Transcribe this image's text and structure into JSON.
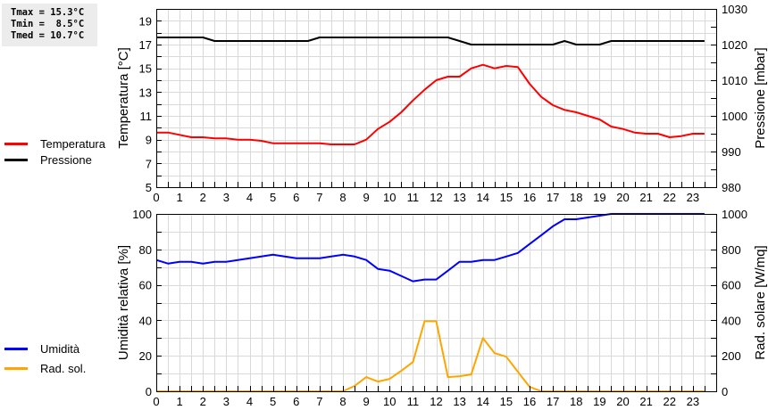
{
  "stats": {
    "tmax": "Tmax = 15.3°C",
    "tmin": "Tmin =  8.5°C",
    "tmed": "Tmed = 10.7°C"
  },
  "legend_top": [
    {
      "label": "Temperatura",
      "color": "#ff0000"
    },
    {
      "label": "Pressione",
      "color": "#000000"
    }
  ],
  "legend_bottom": [
    {
      "label": "Umidità",
      "color": "#0000ff"
    },
    {
      "label": "Rad. sol.",
      "color": "#ffa500"
    }
  ],
  "chart_data": [
    {
      "type": "line",
      "title": "",
      "xlabel": "",
      "ylabel": "Temperatura [°C]",
      "y2label": "Pressione [mbar]",
      "ylim": [
        5,
        20
      ],
      "y2lim": [
        980,
        1030
      ],
      "yticks": [
        5,
        7,
        9,
        11,
        13,
        15,
        17,
        19
      ],
      "y2ticks": [
        980,
        990,
        1000,
        1010,
        1020,
        1030
      ],
      "xticks": [
        0,
        1,
        2,
        3,
        4,
        5,
        6,
        7,
        8,
        9,
        10,
        11,
        12,
        13,
        14,
        15,
        16,
        17,
        18,
        19,
        20,
        21,
        22,
        23
      ],
      "xlim": [
        0,
        24
      ],
      "grid": true,
      "x": [
        0,
        0.5,
        1,
        1.5,
        2,
        2.5,
        3,
        3.5,
        4,
        4.5,
        5,
        5.5,
        6,
        6.5,
        7,
        7.5,
        8,
        8.5,
        9,
        9.5,
        10,
        10.5,
        11,
        11.5,
        12,
        12.5,
        13,
        13.5,
        14,
        14.5,
        15,
        15.5,
        16,
        16.5,
        17,
        17.5,
        18,
        18.5,
        19,
        19.5,
        20,
        20.5,
        21,
        21.5,
        22,
        22.5,
        23,
        23.5
      ],
      "series": [
        {
          "name": "Temperatura",
          "axis": "left",
          "color": "#ff0000",
          "values": [
            9.6,
            9.6,
            9.4,
            9.2,
            9.2,
            9.1,
            9.1,
            9.0,
            9.0,
            8.9,
            8.7,
            8.7,
            8.7,
            8.7,
            8.7,
            8.6,
            8.6,
            8.6,
            9.0,
            9.9,
            10.5,
            11.3,
            12.3,
            13.2,
            14.0,
            14.3,
            14.3,
            15.0,
            15.3,
            15.0,
            15.2,
            15.1,
            13.7,
            12.6,
            11.9,
            11.5,
            11.3,
            11.0,
            10.7,
            10.1,
            9.9,
            9.6,
            9.5,
            9.5,
            9.2,
            9.3,
            9.5,
            9.5
          ]
        },
        {
          "name": "Pressione",
          "axis": "right",
          "color": "#000000",
          "values": [
            1022,
            1022,
            1022,
            1022,
            1022,
            1021,
            1021,
            1021,
            1021,
            1021,
            1021,
            1021,
            1021,
            1021,
            1022,
            1022,
            1022,
            1022,
            1022,
            1022,
            1022,
            1022,
            1022,
            1022,
            1022,
            1022,
            1021,
            1020,
            1020,
            1020,
            1020,
            1020,
            1020,
            1020,
            1020,
            1021,
            1020,
            1020,
            1020,
            1021,
            1021,
            1021,
            1021,
            1021,
            1021,
            1021,
            1021,
            1021
          ]
        }
      ]
    },
    {
      "type": "line",
      "title": "",
      "xlabel": "",
      "ylabel": "Umidità relativa [%]",
      "y2label": "Rad. solare [W/mq]",
      "ylim": [
        0,
        100
      ],
      "y2lim": [
        0,
        1000
      ],
      "yticks": [
        0,
        20,
        40,
        60,
        80,
        100
      ],
      "y2ticks": [
        0,
        200,
        400,
        600,
        800,
        1000
      ],
      "xticks": [
        0,
        1,
        2,
        3,
        4,
        5,
        6,
        7,
        8,
        9,
        10,
        11,
        12,
        13,
        14,
        15,
        16,
        17,
        18,
        19,
        20,
        21,
        22,
        23
      ],
      "xlim": [
        0,
        24
      ],
      "grid": true,
      "x": [
        0,
        0.5,
        1,
        1.5,
        2,
        2.5,
        3,
        3.5,
        4,
        4.5,
        5,
        5.5,
        6,
        6.5,
        7,
        7.5,
        8,
        8.5,
        9,
        9.5,
        10,
        10.5,
        11,
        11.5,
        12,
        12.5,
        13,
        13.5,
        14,
        14.5,
        15,
        15.5,
        16,
        16.5,
        17,
        17.5,
        18,
        18.5,
        19,
        19.5,
        20,
        20.5,
        21,
        21.5,
        22,
        22.5,
        23,
        23.5
      ],
      "series": [
        {
          "name": "Umidità",
          "axis": "left",
          "color": "#0000ff",
          "values": [
            74,
            72,
            73,
            73,
            72,
            73,
            73,
            74,
            75,
            76,
            77,
            76,
            75,
            75,
            75,
            76,
            77,
            76,
            74,
            69,
            68,
            65,
            62,
            63,
            63,
            68,
            73,
            73,
            74,
            74,
            76,
            78,
            83,
            88,
            93,
            97,
            97,
            98,
            99,
            100,
            100,
            100,
            100,
            100,
            100,
            100,
            100,
            100
          ]
        },
        {
          "name": "Rad. sol.",
          "axis": "right",
          "color": "#ffa500",
          "values": [
            0,
            0,
            0,
            0,
            0,
            0,
            0,
            0,
            0,
            0,
            0,
            0,
            0,
            0,
            0,
            0,
            0,
            30,
            80,
            55,
            70,
            115,
            165,
            395,
            395,
            80,
            85,
            95,
            300,
            215,
            195,
            110,
            25,
            0,
            0,
            0,
            0,
            0,
            0,
            0,
            0,
            0,
            0,
            0,
            0,
            0,
            0,
            0
          ]
        }
      ]
    }
  ]
}
